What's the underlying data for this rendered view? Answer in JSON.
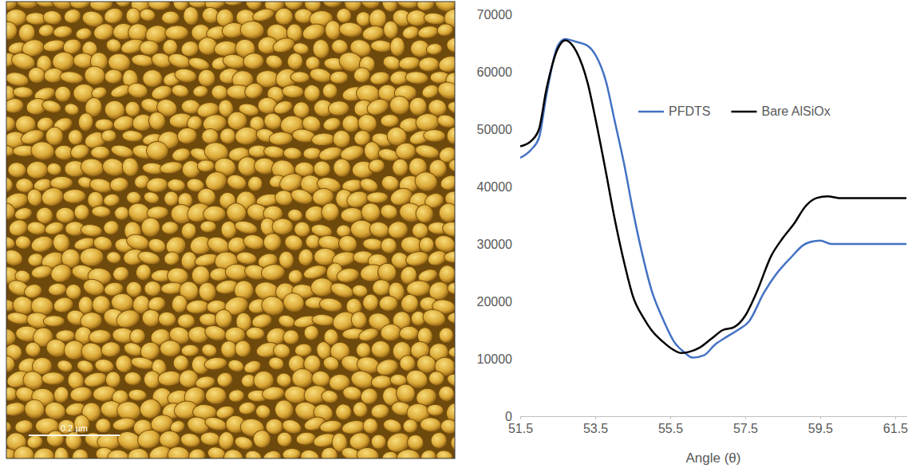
{
  "image": {
    "scale_bar": "0.2 µm"
  },
  "chart_data": {
    "type": "line",
    "x_label": "Angle (θ)",
    "xlim": [
      51.5,
      61.8
    ],
    "xticks": [
      51.5,
      53.5,
      55.5,
      57.5,
      59.5,
      61.5
    ],
    "ylim": [
      0,
      70000
    ],
    "yticks": [
      0,
      10000,
      20000,
      30000,
      40000,
      50000,
      60000,
      70000
    ],
    "grid": false,
    "legend": "top-right",
    "series": [
      {
        "name": "PFDTS",
        "color": "#4472c4",
        "x": [
          51.5,
          51.8,
          52.0,
          52.2,
          52.5,
          52.7,
          53.0,
          53.3,
          53.5,
          53.8,
          54.0,
          54.3,
          54.5,
          54.8,
          55.0,
          55.3,
          55.6,
          55.9,
          56.1,
          56.4,
          56.7,
          57.0,
          57.3,
          57.6,
          58.0,
          58.3,
          58.7,
          59.1,
          59.5,
          59.8,
          61.8
        ],
        "values": [
          45000,
          46500,
          48500,
          56000,
          64500,
          65700,
          65200,
          64500,
          63000,
          58000,
          52000,
          43000,
          36000,
          27000,
          22000,
          17000,
          13000,
          11000,
          10200,
          10600,
          12500,
          13800,
          15000,
          16500,
          21500,
          24500,
          27500,
          30000,
          30600,
          30000,
          30000
        ]
      },
      {
        "name": "Bare AlSiOx",
        "color": "#000000",
        "x": [
          51.5,
          51.8,
          52.0,
          52.2,
          52.5,
          52.7,
          53.0,
          53.3,
          53.5,
          53.8,
          54.0,
          54.3,
          54.5,
          54.8,
          55.0,
          55.3,
          55.6,
          55.8,
          56.0,
          56.3,
          56.6,
          56.9,
          57.2,
          57.5,
          57.8,
          58.2,
          58.5,
          58.8,
          59.1,
          59.4,
          59.7,
          60.0,
          61.8
        ],
        "values": [
          47000,
          48000,
          50000,
          57000,
          64000,
          65500,
          63500,
          58000,
          52000,
          42000,
          35000,
          26000,
          21000,
          17000,
          15000,
          13000,
          11500,
          11000,
          11200,
          12000,
          13500,
          15000,
          15500,
          17500,
          21500,
          28000,
          31000,
          33500,
          36500,
          38000,
          38300,
          38000,
          38000
        ]
      }
    ]
  }
}
